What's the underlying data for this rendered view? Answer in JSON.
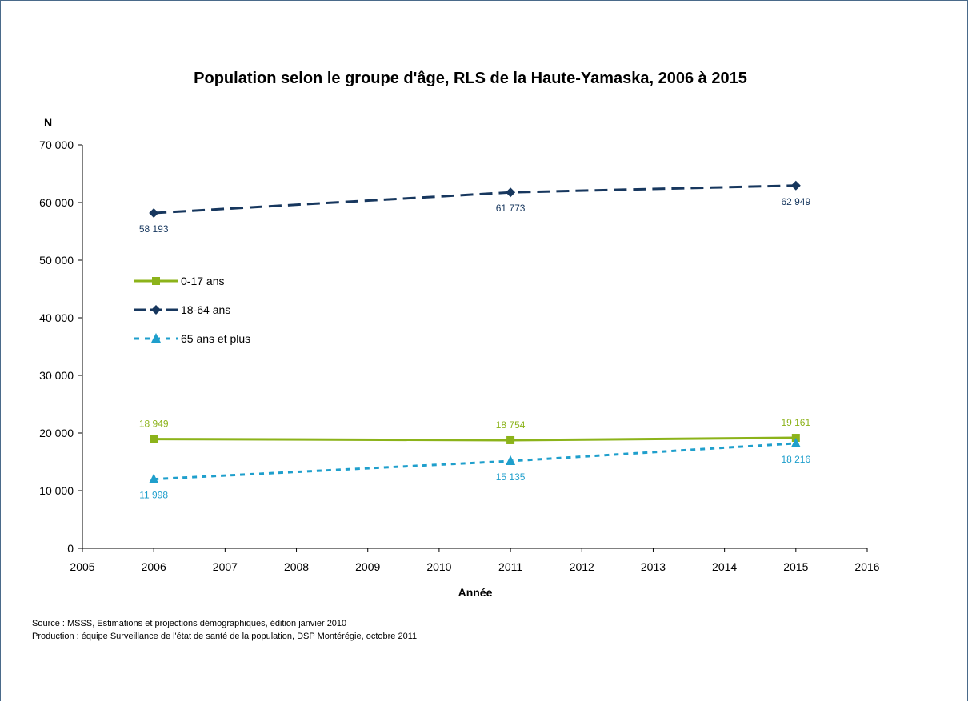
{
  "chart_data": {
    "type": "line",
    "title": "Population selon le groupe d'âge, RLS de la Haute-Yamaska, 2006 à 2015",
    "xlabel": "Année",
    "ylabel": "N",
    "xlim": [
      2005,
      2016
    ],
    "ylim": [
      0,
      70000
    ],
    "x_ticks": [
      2005,
      2006,
      2007,
      2008,
      2009,
      2010,
      2011,
      2012,
      2013,
      2014,
      2015,
      2016
    ],
    "x_tick_labels": [
      "2005",
      "2006",
      "2007",
      "2008",
      "2009",
      "2010",
      "2011",
      "2012",
      "2013",
      "2014",
      "2015",
      "2016"
    ],
    "y_ticks": [
      0,
      10000,
      20000,
      30000,
      40000,
      50000,
      60000,
      70000
    ],
    "y_tick_labels": [
      "0",
      "10 000",
      "20 000",
      "30 000",
      "40 000",
      "50 000",
      "60 000",
      "70 000"
    ],
    "grid": false,
    "legend_position": "left",
    "series": [
      {
        "name": "0-17 ans",
        "color": "#8cb31a",
        "line_style": "solid",
        "marker": "square",
        "x": [
          2006,
          2011,
          2015
        ],
        "y": [
          18949,
          18754,
          19161
        ],
        "labels": [
          "18 949",
          "18 754",
          "19 161"
        ],
        "label_position": "above"
      },
      {
        "name": "18-64 ans",
        "color": "#17375e",
        "line_style": "dashed",
        "marker": "diamond",
        "x": [
          2006,
          2011,
          2015
        ],
        "y": [
          58193,
          61773,
          62949
        ],
        "labels": [
          "58 193",
          "61 773",
          "62 949"
        ],
        "label_position": "below"
      },
      {
        "name": "65 ans et plus",
        "color": "#1f9fcc",
        "line_style": "dotted",
        "marker": "triangle",
        "x": [
          2006,
          2011,
          2015
        ],
        "y": [
          11998,
          15135,
          18216
        ],
        "labels": [
          "11 998",
          "15 135",
          "18 216"
        ],
        "label_position": "below"
      }
    ]
  },
  "notes": {
    "source": "Source : MSSS, Estimations et projections démographiques, édition janvier 2010",
    "production": "Production : équipe Surveillance de l'état de santé de la population, DSP Montérégie, octobre 2011"
  }
}
